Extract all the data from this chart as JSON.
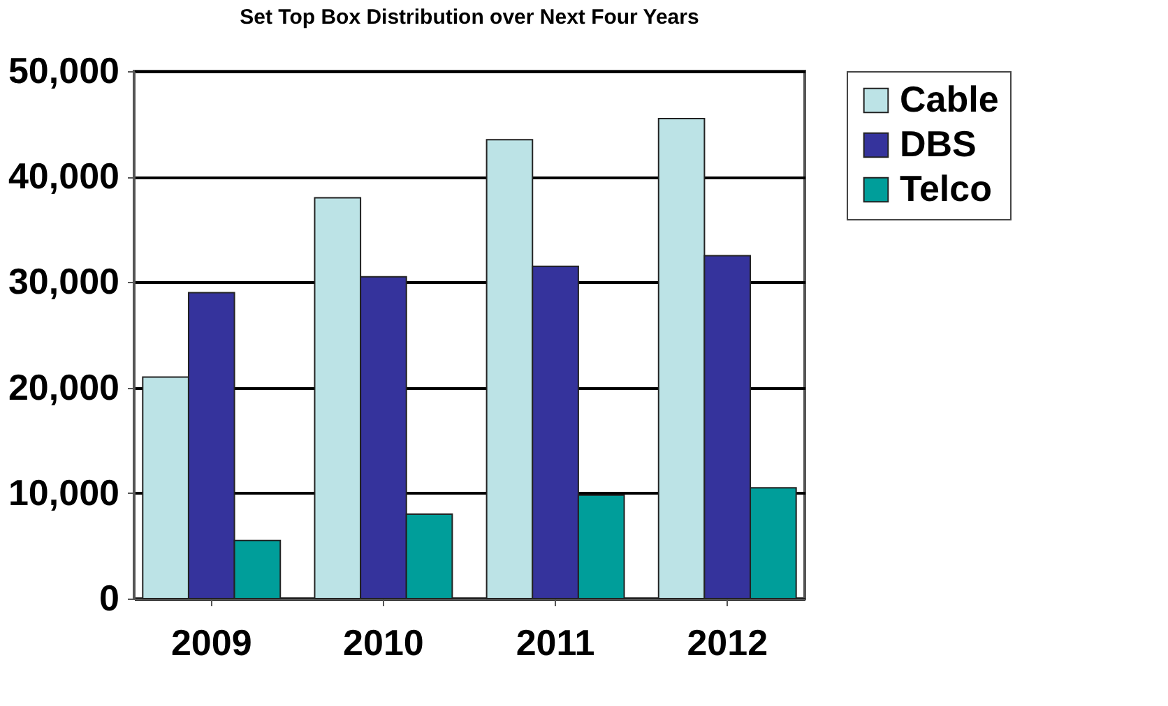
{
  "chart_data": {
    "type": "bar",
    "title": "Set Top Box Distribution over Next Four Years",
    "categories": [
      "2009",
      "2010",
      "2011",
      "2012"
    ],
    "series": [
      {
        "name": "Cable",
        "color": "#bce3e6",
        "values": [
          21000,
          38000,
          43500,
          45500
        ]
      },
      {
        "name": "DBS",
        "color": "#35339c",
        "values": [
          29000,
          30500,
          31500,
          32500
        ]
      },
      {
        "name": "Telco",
        "color": "#009e9a",
        "values": [
          5500,
          8000,
          9800,
          10500
        ]
      }
    ],
    "ylim": [
      0,
      50000
    ],
    "yticks": [
      0,
      {
        "value": 10000,
        "label": "10,000"
      },
      {
        "value": 20000,
        "label": "20,000"
      },
      {
        "value": 30000,
        "label": "30,000"
      },
      {
        "value": 40000,
        "label": "40,000"
      },
      {
        "value": 50000,
        "label": "50,000"
      }
    ],
    "grid": "y",
    "legend": "right"
  }
}
